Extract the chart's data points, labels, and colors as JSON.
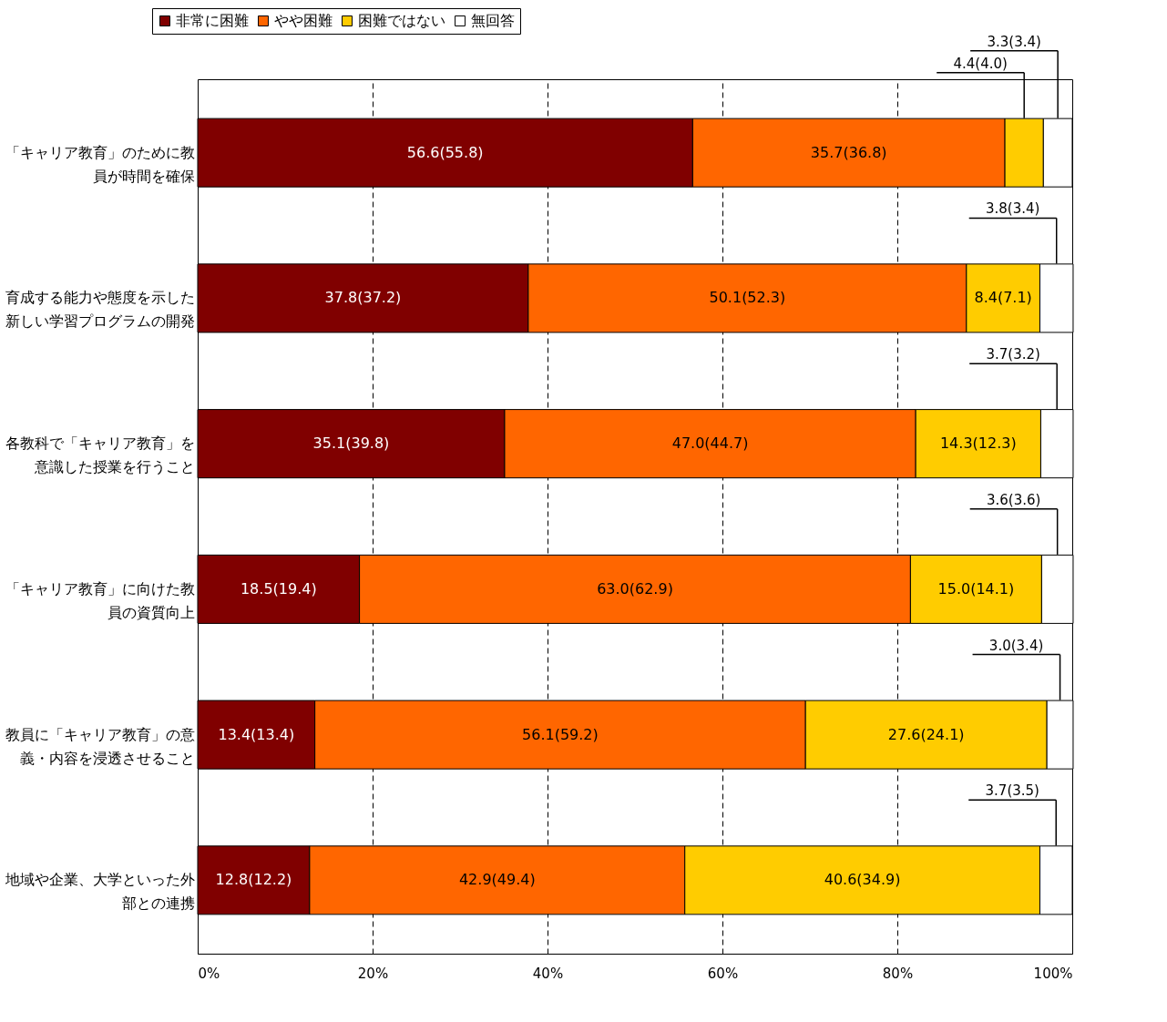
{
  "chart_data": {
    "type": "bar",
    "orientation": "horizontal",
    "stacked": true,
    "categories": [
      "「キャリア教育」のために教員が時間を確保",
      "育成する能力や態度を示した新しい学習プログラムの開発",
      "各教科で「キャリア教育」を意識した授業を行うこと",
      "「キャリア教育」に向けた教員の資質向上",
      "教員に「キャリア教育」の意義・内容を浸透させること",
      "地域や企業、大学といった外部との連携"
    ],
    "series": [
      {
        "name": "非常に困難",
        "color": "#800000",
        "values": [
          56.6,
          37.8,
          35.1,
          18.5,
          13.4,
          12.8
        ],
        "value_labels": [
          "56.6(55.8)",
          "37.8(37.2)",
          "35.1(39.8)",
          "18.5(19.4)",
          "13.4(13.4)",
          "12.8(12.2)"
        ]
      },
      {
        "name": "やや困難",
        "color": "#ff6600",
        "values": [
          35.7,
          50.1,
          47.0,
          63.0,
          56.1,
          42.9
        ],
        "value_labels": [
          "35.7(36.8)",
          "50.1(52.3)",
          "47.0(44.7)",
          "63.0(62.9)",
          "56.1(59.2)",
          "42.9(49.4)"
        ]
      },
      {
        "name": "困難ではない",
        "color": "#ffcc00",
        "values": [
          4.4,
          8.4,
          14.3,
          15.0,
          27.6,
          40.6
        ],
        "value_labels": [
          "4.4(4.0)",
          "8.4(7.1)",
          "14.3(12.3)",
          "15.0(14.1)",
          "27.6(24.1)",
          "40.6(34.9)"
        ]
      },
      {
        "name": "無回答",
        "color": "#ffffff",
        "values": [
          3.3,
          3.8,
          3.7,
          3.6,
          3.0,
          3.7
        ],
        "value_labels": [
          "3.3(3.4)",
          "3.8(3.4)",
          "3.7(3.2)",
          "3.6(3.6)",
          "3.0(3.4)",
          "3.7(3.5)"
        ]
      }
    ],
    "xlim": [
      0,
      100
    ],
    "xticks": [
      {
        "value": 0,
        "label": "0%"
      },
      {
        "value": 20,
        "label": "20%"
      },
      {
        "value": 40,
        "label": "40%"
      },
      {
        "value": 60,
        "label": "60%"
      },
      {
        "value": 80,
        "label": "80%"
      },
      {
        "value": 100,
        "label": "100%"
      }
    ],
    "grid": "x",
    "legend": "top left"
  }
}
